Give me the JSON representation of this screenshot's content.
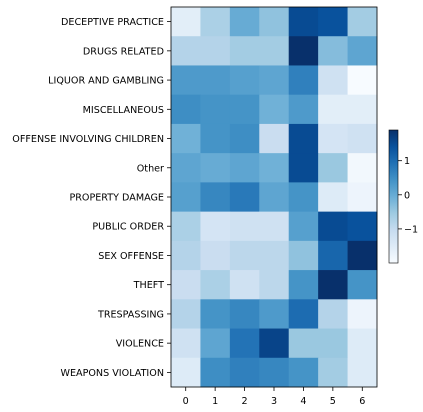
{
  "chart_data": {
    "type": "heatmap",
    "title": "",
    "xlabel": "",
    "ylabel": "",
    "x_categories": [
      "0",
      "1",
      "2",
      "3",
      "4",
      "5",
      "6"
    ],
    "y_categories": [
      "DECEPTIVE PRACTICE",
      "DRUGS RELATED",
      "LIQUOR AND GAMBLING",
      "MISCELLANEOUS",
      "OFFENSE INVOLVING CHILDREN",
      "Other",
      "PROPERTY DAMAGE",
      "PUBLIC ORDER",
      "SEX OFFENSE",
      "THEFT",
      "TRESPASSING",
      "VIOLENCE",
      "WEAPONS VIOLATION"
    ],
    "values": [
      [
        -1.6,
        -0.7,
        0.0,
        -0.4,
        1.5,
        1.4,
        -0.6
      ],
      [
        -0.8,
        -0.8,
        -0.6,
        -0.6,
        2.3,
        -0.3,
        0.1
      ],
      [
        0.3,
        0.3,
        0.2,
        0.1,
        0.7,
        -1.2,
        -2.0
      ],
      [
        0.5,
        0.4,
        0.4,
        -0.1,
        0.3,
        -1.6,
        -1.6
      ],
      [
        -0.1,
        0.4,
        0.5,
        -1.1,
        1.5,
        -1.3,
        -1.2
      ],
      [
        0.1,
        0.0,
        0.1,
        -0.1,
        1.5,
        -0.5,
        -1.9
      ],
      [
        0.2,
        0.6,
        0.8,
        0.1,
        0.4,
        -1.5,
        -1.8
      ],
      [
        -0.7,
        -1.3,
        -1.2,
        -1.2,
        0.2,
        1.5,
        1.4
      ],
      [
        -0.8,
        -1.1,
        -0.9,
        -0.9,
        -0.4,
        1.1,
        2.2
      ],
      [
        -1.1,
        -0.7,
        -1.2,
        -0.9,
        0.4,
        2.1,
        0.4
      ],
      [
        -0.8,
        0.4,
        0.6,
        0.3,
        1.0,
        -0.8,
        -1.8
      ],
      [
        -1.2,
        0.1,
        0.9,
        1.6,
        -0.5,
        -0.5,
        -1.5
      ],
      [
        -1.5,
        0.5,
        0.7,
        0.6,
        0.4,
        -0.6,
        -1.5
      ]
    ],
    "colorbar": {
      "ticks": [
        1,
        0,
        -1
      ],
      "tick_labels": [
        "1",
        "0",
        "−1"
      ],
      "vmin": -2.0,
      "vmax": 1.9
    },
    "colormap": [
      "#f7fbff",
      "#deebf7",
      "#c6dbef",
      "#9ecae1",
      "#6baed6",
      "#4292c6",
      "#2171b5",
      "#08519c",
      "#08306b"
    ],
    "grid": false
  }
}
